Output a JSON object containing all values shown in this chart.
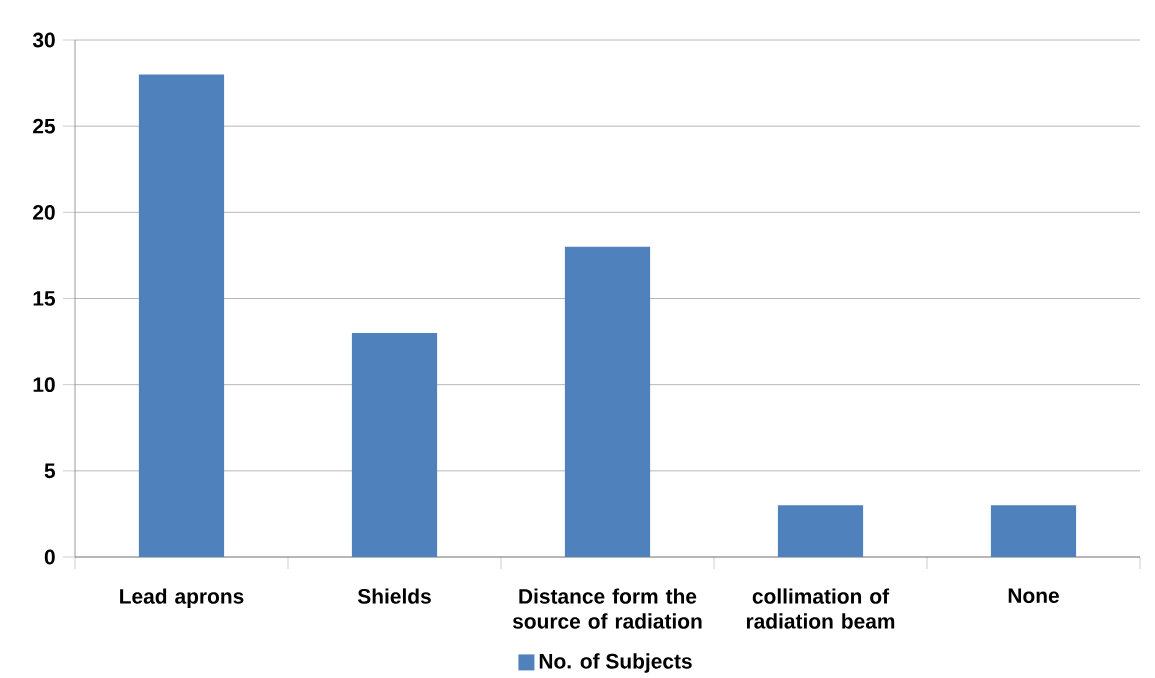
{
  "chart_data": {
    "type": "bar",
    "categories": [
      "Lead aprons",
      "Shields",
      "Distance form the source of radiation",
      "collimation of radiation beam",
      "None"
    ],
    "series": [
      {
        "name": "No. of Subjects",
        "color": "#4f81bd",
        "values": [
          28,
          13,
          18,
          3,
          3
        ]
      }
    ],
    "ylim": [
      0,
      30
    ],
    "yticks": [
      0,
      5,
      10,
      15,
      20,
      25,
      30
    ],
    "grid": "y",
    "legend": "bottom"
  }
}
